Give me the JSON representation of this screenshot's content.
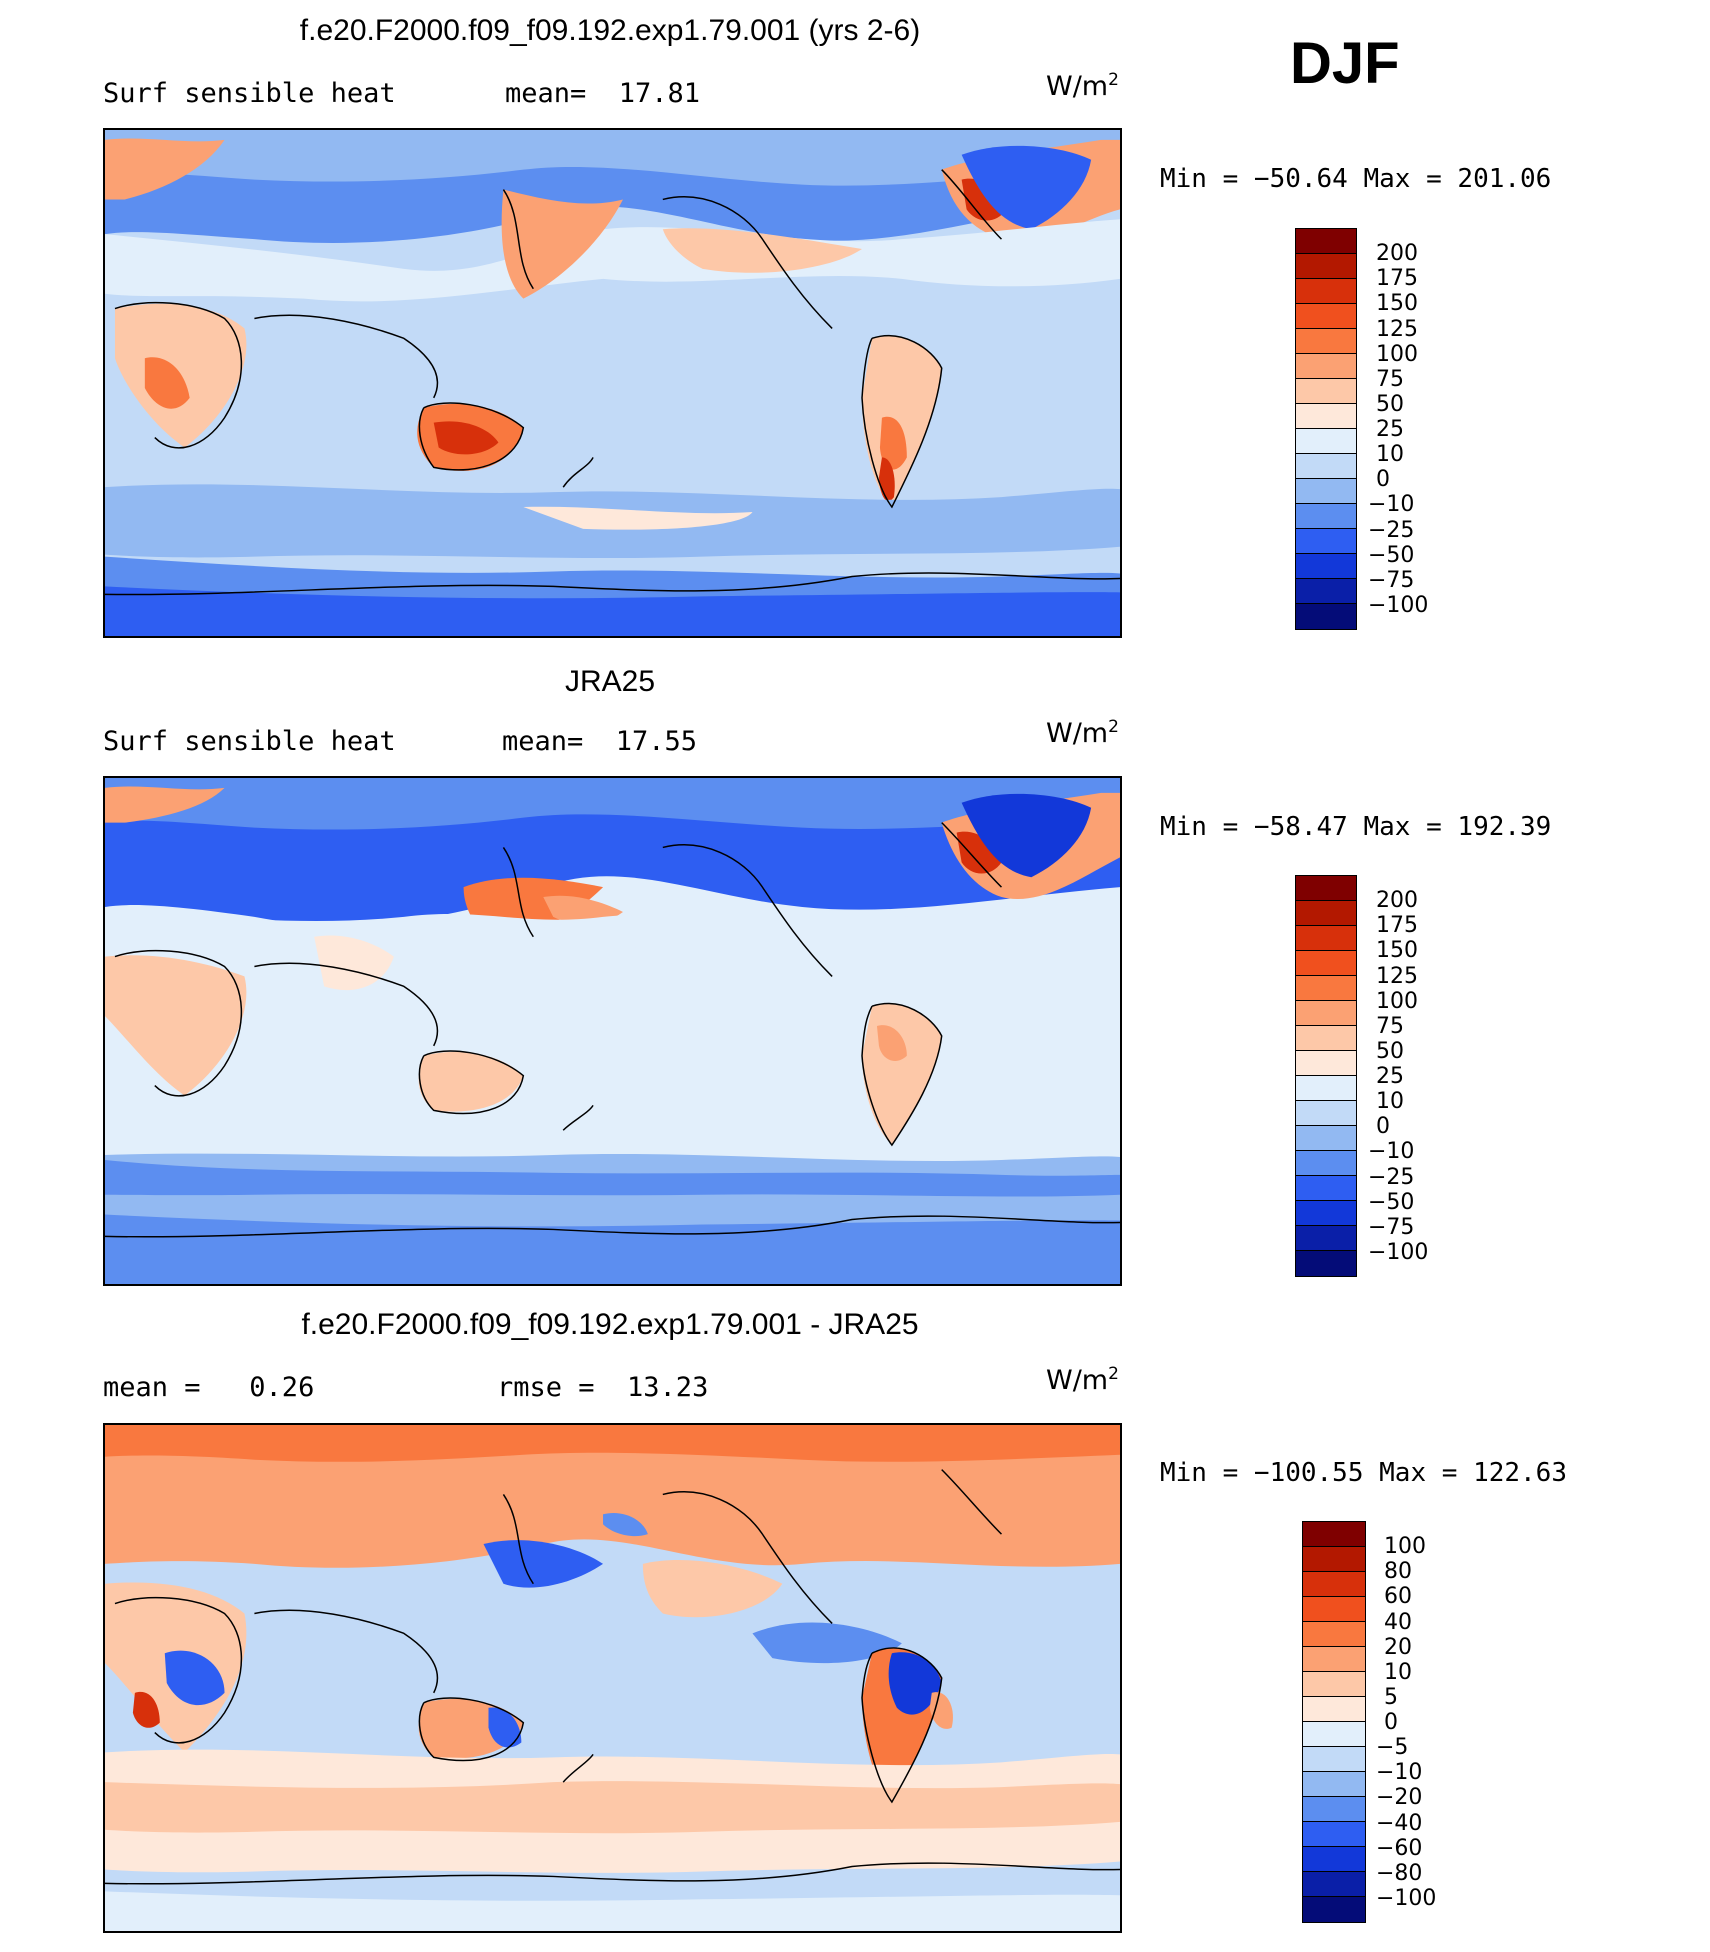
{
  "season": "DJF",
  "panels": [
    {
      "title": "f.e20.F2000.f09_f09.192.exp1.79.001 (yrs 2-6)",
      "left_text": "Surf sensible heat",
      "right_text": "mean=  17.81",
      "units": "W/m",
      "units_exp": "2",
      "minmax": "Min = −50.64 Max = 201.06",
      "colorbar": "abs"
    },
    {
      "title": "JRA25",
      "left_text": "Surf sensible heat",
      "right_text": "mean=  17.55",
      "units": "W/m",
      "units_exp": "2",
      "minmax": "Min = −58.47 Max = 192.39",
      "colorbar": "abs"
    },
    {
      "title": "f.e20.F2000.f09_f09.192.exp1.79.001 - JRA25",
      "left_text": "mean =   0.26",
      "right_text": "rmse =  13.23",
      "units": "W/m",
      "units_exp": "2",
      "minmax": "Min = −100.55 Max = 122.63",
      "colorbar": "diff"
    }
  ],
  "colorbars": {
    "abs": {
      "labels": [
        "200",
        "175",
        "150",
        "125",
        "100",
        "75",
        "50",
        "25",
        "10",
        "0",
        "−10",
        "−25",
        "−50",
        "−75",
        "−100"
      ],
      "colors": [
        "#7f0000",
        "#b31800",
        "#d7300b",
        "#f0501e",
        "#f9783f",
        "#fba173",
        "#fdc8a8",
        "#fee8da",
        "#e2effb",
        "#c2daf7",
        "#92b9f2",
        "#5c8ef0",
        "#2e5ef2",
        "#1238d9",
        "#0a1fa8",
        "#040c78"
      ]
    },
    "diff": {
      "labels": [
        "100",
        "80",
        "60",
        "40",
        "20",
        "10",
        "5",
        "0",
        "−5",
        "−10",
        "−20",
        "−40",
        "−60",
        "−80",
        "−100"
      ],
      "colors": [
        "#7f0000",
        "#b31800",
        "#d7300b",
        "#f0501e",
        "#f9783f",
        "#fba173",
        "#fdc8a8",
        "#fee8da",
        "#e2effb",
        "#c2daf7",
        "#92b9f2",
        "#5c8ef0",
        "#2e5ef2",
        "#1238d9",
        "#0a1fa8",
        "#040c78"
      ]
    }
  }
}
